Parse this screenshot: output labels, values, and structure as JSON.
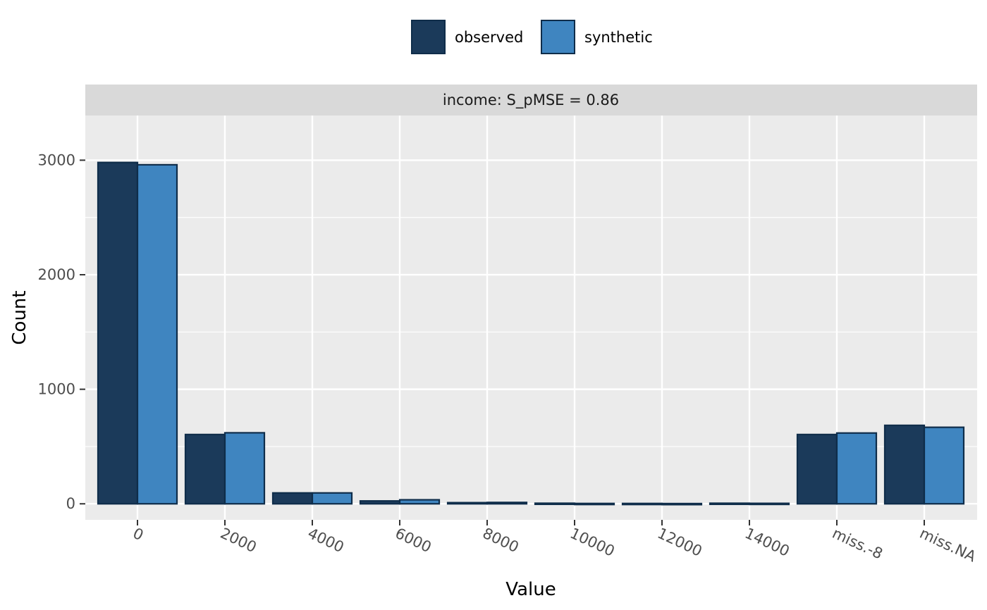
{
  "chart_data": {
    "type": "bar",
    "title": "",
    "facet_label": "income: S_pMSE = 0.86",
    "xlabel": "Value",
    "ylabel": "Count",
    "categories": [
      "0",
      "2000",
      "4000",
      "6000",
      "8000",
      "10000",
      "12000",
      "14000",
      "miss.-8",
      "miss.NA"
    ],
    "series": [
      {
        "name": "observed",
        "color": "#1b3a5a",
        "values": [
          2980,
          605,
          95,
          25,
          10,
          5,
          3,
          5,
          605,
          685
        ]
      },
      {
        "name": "synthetic",
        "color": "#3f85c0",
        "values": [
          2960,
          620,
          95,
          35,
          12,
          3,
          2,
          4,
          618,
          668
        ]
      }
    ],
    "ylim": [
      -140,
      3390
    ],
    "yticks": [
      0,
      1000,
      2000,
      3000
    ],
    "grid": true,
    "legend_position": "top",
    "panel_color": "#ebebeb",
    "strip_color": "#d9d9d9",
    "bar_outline_color": "#0f2d4a"
  }
}
